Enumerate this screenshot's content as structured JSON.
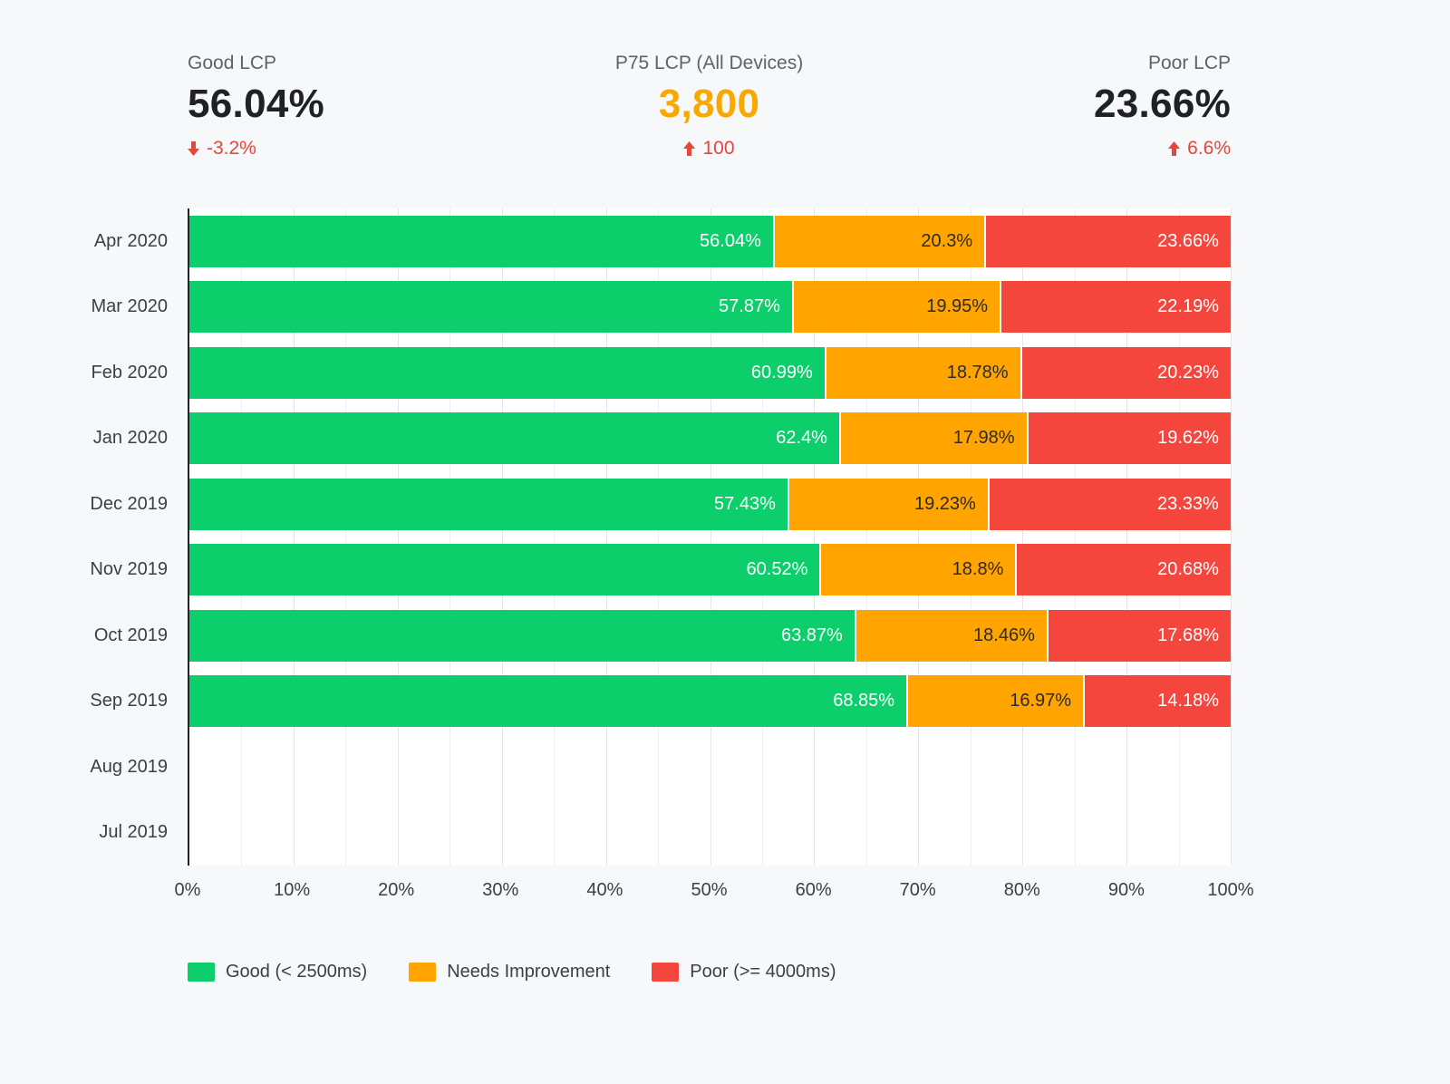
{
  "kpis": {
    "good": {
      "label": "Good LCP",
      "value": "56.04%",
      "delta": "-3.2%",
      "trend": "down"
    },
    "p75": {
      "label": "P75 LCP (All Devices)",
      "value": "3,800",
      "delta": "100",
      "trend": "up"
    },
    "poor": {
      "label": "Poor LCP",
      "value": "23.66%",
      "delta": "6.6%",
      "trend": "up"
    }
  },
  "colors": {
    "good": "#0cce6b",
    "needs_improvement": "#ffa400",
    "poor": "#f4463d",
    "delta_negative": "#e8453c",
    "p75_value": "#f9a800"
  },
  "chart_data": {
    "type": "bar",
    "orientation": "horizontal",
    "stacked": true,
    "grid": true,
    "legend_position": "bottom",
    "xlim": [
      0,
      100
    ],
    "x_ticks": [
      "0%",
      "10%",
      "20%",
      "30%",
      "40%",
      "50%",
      "60%",
      "70%",
      "80%",
      "90%",
      "100%"
    ],
    "categories": [
      "Apr 2020",
      "Mar 2020",
      "Feb 2020",
      "Jan 2020",
      "Dec 2019",
      "Nov 2019",
      "Oct 2019",
      "Sep 2019",
      "Aug 2019",
      "Jul 2019"
    ],
    "series": [
      {
        "key": "good",
        "name": "Good (< 2500ms)",
        "color": "#0cce6b",
        "label_color": "#ffffff",
        "values": [
          56.04,
          57.87,
          60.99,
          62.4,
          57.43,
          60.52,
          63.87,
          68.85,
          null,
          null
        ]
      },
      {
        "key": "needs-improvement",
        "name": "Needs Improvement",
        "color": "#ffa400",
        "label_color": "#2b2b2b",
        "values": [
          20.3,
          19.95,
          18.78,
          17.98,
          19.23,
          18.8,
          18.46,
          16.97,
          null,
          null
        ]
      },
      {
        "key": "poor",
        "name": "Poor (>= 4000ms)",
        "color": "#f4463d",
        "label_color": "#ffffff",
        "values": [
          23.66,
          22.19,
          20.23,
          19.62,
          23.33,
          20.68,
          17.68,
          14.18,
          null,
          null
        ]
      }
    ]
  }
}
